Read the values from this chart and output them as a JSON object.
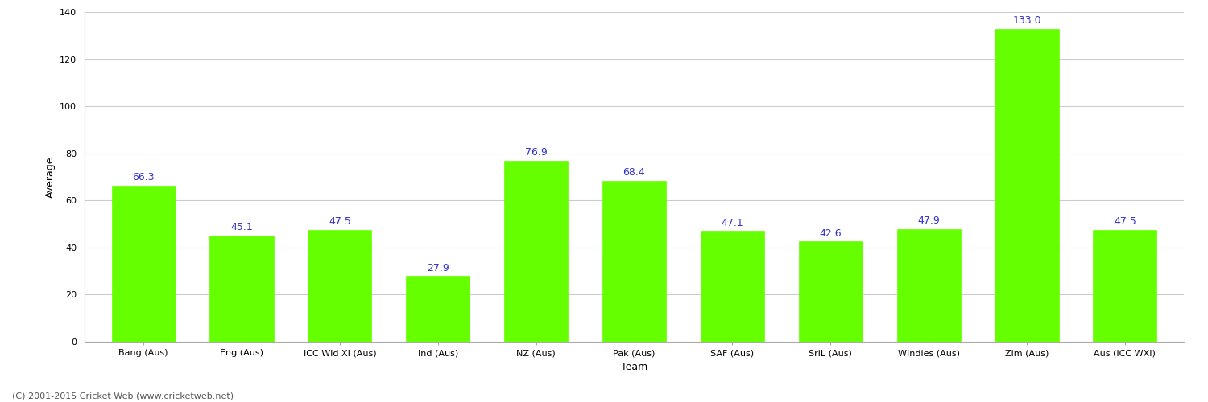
{
  "title": "",
  "xlabel": "Team",
  "ylabel": "Average",
  "categories": [
    "Bang (Aus)",
    "Eng (Aus)",
    "ICC Wld XI (Aus)",
    "Ind (Aus)",
    "NZ (Aus)",
    "Pak (Aus)",
    "SAF (Aus)",
    "SriL (Aus)",
    "WIndies (Aus)",
    "Zim (Aus)",
    "Aus (ICC WXI)"
  ],
  "values": [
    66.3,
    45.1,
    47.5,
    27.9,
    76.9,
    68.4,
    47.1,
    42.6,
    47.9,
    133.0,
    47.5
  ],
  "bar_color": "#66ff00",
  "bar_edge_color": "#66ff00",
  "label_color": "#3333cc",
  "label_fontsize": 9,
  "axis_label_fontsize": 9,
  "tick_fontsize": 8,
  "ylim": [
    0,
    140
  ],
  "yticks": [
    0,
    20,
    40,
    60,
    80,
    100,
    120,
    140
  ],
  "grid_color": "#cccccc",
  "background_color": "#ffffff",
  "footer_text": "(C) 2001-2015 Cricket Web (www.cricketweb.net)",
  "footer_fontsize": 8,
  "footer_color": "#555555"
}
